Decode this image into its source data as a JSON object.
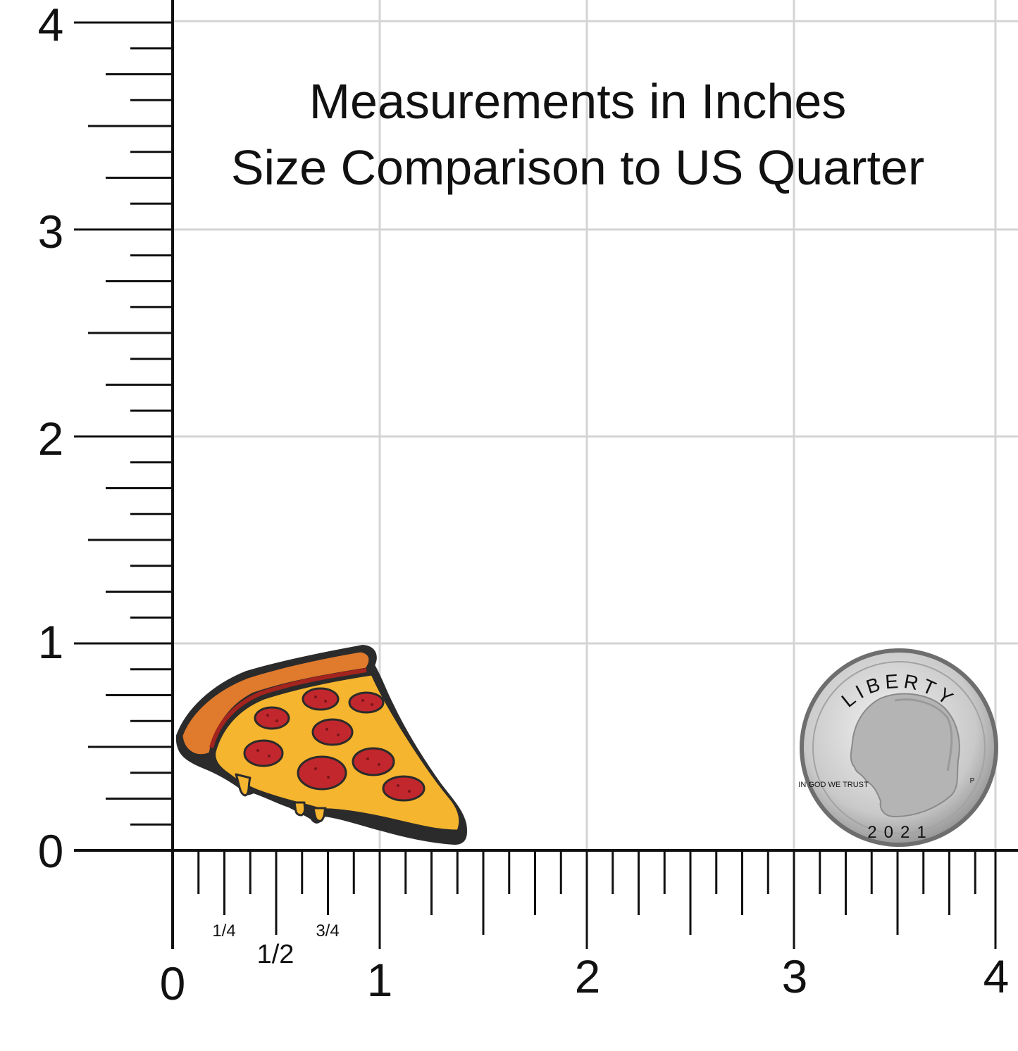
{
  "heading": {
    "line1": "Measurements in Inches",
    "line2": "Size Comparison to US Quarter"
  },
  "y_axis": {
    "labels": [
      "0",
      "1",
      "2",
      "3",
      "4"
    ]
  },
  "x_axis": {
    "labels": [
      "0",
      "1",
      "2",
      "3",
      "4"
    ],
    "fraction_labels": [
      "1/4",
      "1/2",
      "3/4"
    ]
  },
  "quarter": {
    "legend": "LIBERTY",
    "motto": "IN GOD WE TRUST",
    "year": "2021",
    "mint_mark": "P"
  },
  "colors": {
    "grid": "#d4d4d4",
    "ruler": "#111111",
    "crust": "#e07a2c",
    "cheese": "#f5b52e",
    "pepperoni": "#c1272d",
    "coin": "#c8c8c8"
  },
  "icons": [
    "pizza-slice-icon",
    "us-quarter-icon"
  ]
}
